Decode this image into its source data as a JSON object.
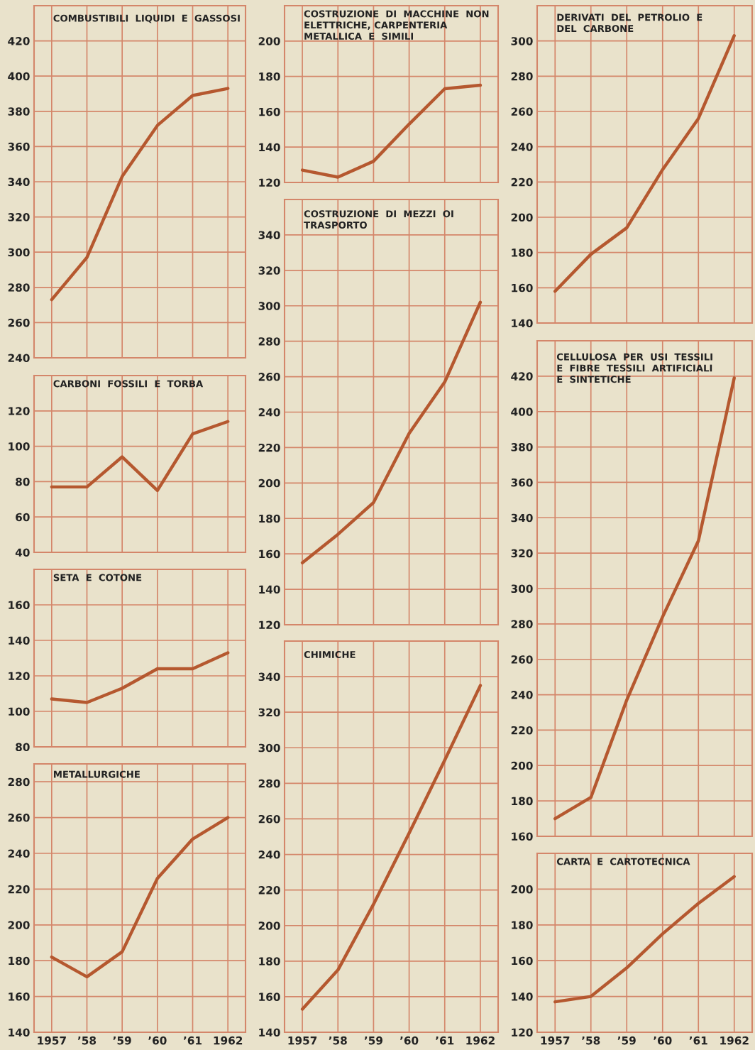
{
  "chart_data": [
    {
      "type": "line",
      "title": "COMBUSTIBILI  LIQUIDI  E  GASSOSI",
      "x": [
        1957,
        1958,
        1959,
        1960,
        1961,
        1962
      ],
      "xlim": [
        1956.5,
        1962.5
      ],
      "xticks": [
        1957,
        1958,
        1959,
        1960,
        1961,
        1962
      ],
      "ylim": [
        240,
        440
      ],
      "yticks": [
        240,
        260,
        280,
        300,
        320,
        340,
        360,
        380,
        400,
        420
      ],
      "grid": true,
      "tick_labels": "y",
      "marker": "none",
      "line_style": "solid",
      "series": [
        {
          "color": "#b5582f",
          "values": [
            273,
            297,
            343,
            372,
            389,
            393
          ]
        }
      ]
    },
    {
      "type": "line",
      "title": "CARBONI  FOSSILI  E  TORBA",
      "x": [
        1957,
        1958,
        1959,
        1960,
        1961,
        1962
      ],
      "xlim": [
        1956.5,
        1962.5
      ],
      "xticks": [
        1957,
        1958,
        1959,
        1960,
        1961,
        1962
      ],
      "ylim": [
        40,
        140
      ],
      "yticks": [
        40,
        60,
        80,
        100,
        120
      ],
      "grid": true,
      "tick_labels": "y",
      "marker": "none",
      "line_style": "solid",
      "series": [
        {
          "color": "#b5582f",
          "values": [
            77,
            77,
            94,
            75,
            107,
            114
          ]
        }
      ]
    },
    {
      "type": "line",
      "title": "SETA  E  COTONE",
      "x": [
        1957,
        1958,
        1959,
        1960,
        1961,
        1962
      ],
      "xlim": [
        1956.5,
        1962.5
      ],
      "xticks": [
        1957,
        1958,
        1959,
        1960,
        1961,
        1962
      ],
      "ylim": [
        80,
        180
      ],
      "yticks": [
        80,
        100,
        120,
        140,
        160
      ],
      "grid": true,
      "tick_labels": "y",
      "marker": "none",
      "line_style": "solid",
      "series": [
        {
          "color": "#b5582f",
          "values": [
            107,
            105,
            113,
            124,
            124,
            133
          ]
        }
      ]
    },
    {
      "type": "line",
      "title": "METALLURGICHE",
      "x": [
        1957,
        1958,
        1959,
        1960,
        1961,
        1962
      ],
      "xlim": [
        1956.5,
        1962.5
      ],
      "xticks": [
        1957,
        {
          "value": 1958,
          "label": "’58"
        },
        {
          "value": 1959,
          "label": "’59"
        },
        {
          "value": 1960,
          "label": "’60"
        },
        {
          "value": 1961,
          "label": "’61"
        },
        1962
      ],
      "ylim": [
        140,
        290
      ],
      "yticks": [
        140,
        160,
        180,
        200,
        220,
        240,
        260,
        280
      ],
      "grid": true,
      "marker": "none",
      "line_style": "solid",
      "series": [
        {
          "color": "#b5582f",
          "values": [
            182,
            171,
            185,
            226,
            248,
            260
          ]
        }
      ]
    },
    {
      "type": "line",
      "title": "COSTRUZIONE  DI  MACCHINE  NON\nELETTRICHE, CARPENTERIA\nMETALLICA  E  SIMILI",
      "x": [
        1957,
        1958,
        1959,
        1960,
        1961,
        1962
      ],
      "xlim": [
        1956.5,
        1962.5
      ],
      "xticks": [
        1957,
        1958,
        1959,
        1960,
        1961,
        1962
      ],
      "ylim": [
        120,
        220
      ],
      "yticks": [
        120,
        140,
        160,
        180,
        200
      ],
      "grid": true,
      "tick_labels": "y",
      "marker": "none",
      "line_style": "solid",
      "series": [
        {
          "color": "#b5582f",
          "values": [
            127,
            123,
            132,
            153,
            173,
            175
          ]
        }
      ]
    },
    {
      "type": "line",
      "title": "COSTRUZIONE  DI  MEZZI  OI\nTRASPORTO",
      "x": [
        1957,
        1958,
        1959,
        1960,
        1961,
        1962
      ],
      "xlim": [
        1956.5,
        1962.5
      ],
      "xticks": [
        1957,
        1958,
        1959,
        1960,
        1961,
        1962
      ],
      "ylim": [
        120,
        360
      ],
      "yticks": [
        120,
        140,
        160,
        180,
        200,
        220,
        240,
        260,
        280,
        300,
        320,
        340
      ],
      "grid": true,
      "tick_labels": "y",
      "marker": "none",
      "line_style": "solid",
      "series": [
        {
          "color": "#b5582f",
          "values": [
            155,
            171,
            189,
            228,
            257,
            302
          ]
        }
      ]
    },
    {
      "type": "line",
      "title": "CHIMICHE",
      "x": [
        1957,
        1958,
        1959,
        1960,
        1961,
        1962
      ],
      "xlim": [
        1956.5,
        1962.5
      ],
      "xticks": [
        1957,
        {
          "value": 1958,
          "label": "’58"
        },
        {
          "value": 1959,
          "label": "’59"
        },
        {
          "value": 1960,
          "label": "’60"
        },
        {
          "value": 1961,
          "label": "’61"
        },
        1962
      ],
      "ylim": [
        140,
        360
      ],
      "yticks": [
        140,
        160,
        180,
        200,
        220,
        240,
        260,
        280,
        300,
        320,
        340
      ],
      "grid": true,
      "marker": "none",
      "line_style": "solid",
      "series": [
        {
          "color": "#b5582f",
          "values": [
            153,
            175,
            212,
            252,
            293,
            335
          ]
        }
      ]
    },
    {
      "type": "line",
      "title": "DERIVATI  DEL  PETROLIO  E\nDEL  CARBONE",
      "x": [
        1957,
        1958,
        1959,
        1960,
        1961,
        1962
      ],
      "xlim": [
        1956.5,
        1962.5
      ],
      "xticks": [
        1957,
        1958,
        1959,
        1960,
        1961,
        1962
      ],
      "ylim": [
        140,
        320
      ],
      "yticks": [
        140,
        160,
        180,
        200,
        220,
        240,
        260,
        280,
        300
      ],
      "grid": true,
      "tick_labels": "y",
      "marker": "none",
      "line_style": "solid",
      "series": [
        {
          "color": "#b5582f",
          "values": [
            158,
            179,
            194,
            227,
            256,
            303
          ]
        }
      ]
    },
    {
      "type": "line",
      "title": "CELLULOSA  PER  USI  TESSILI\nE  FIBRE  TESSILI  ARTIFICIALI\nE  SINTETICHE",
      "x": [
        1957,
        1958,
        1959,
        1960,
        1961,
        1962
      ],
      "xlim": [
        1956.5,
        1962.5
      ],
      "xticks": [
        1957,
        1958,
        1959,
        1960,
        1961,
        1962
      ],
      "ylim": [
        160,
        440
      ],
      "yticks": [
        160,
        180,
        200,
        220,
        240,
        260,
        280,
        300,
        320,
        340,
        360,
        380,
        400,
        420
      ],
      "grid": true,
      "tick_labels": "y",
      "marker": "none",
      "line_style": "solid",
      "series": [
        {
          "color": "#b5582f",
          "values": [
            170,
            182,
            237,
            284,
            327,
            419
          ]
        }
      ]
    },
    {
      "type": "line",
      "title": "CARTA  E  CARTOTECNICA",
      "x": [
        1957,
        1958,
        1959,
        1960,
        1961,
        1962
      ],
      "xlim": [
        1956.5,
        1962.5
      ],
      "xticks": [
        1957,
        {
          "value": 1958,
          "label": "’58"
        },
        {
          "value": 1959,
          "label": "’59"
        },
        {
          "value": 1960,
          "label": "’60"
        },
        {
          "value": 1961,
          "label": "’61"
        },
        1962
      ],
      "ylim": [
        120,
        220
      ],
      "yticks": [
        120,
        140,
        160,
        180,
        200
      ],
      "grid": true,
      "marker": "none",
      "line_style": "solid",
      "series": [
        {
          "color": "#b5582f",
          "values": [
            137,
            140,
            156,
            175,
            192,
            207
          ]
        }
      ]
    }
  ]
}
